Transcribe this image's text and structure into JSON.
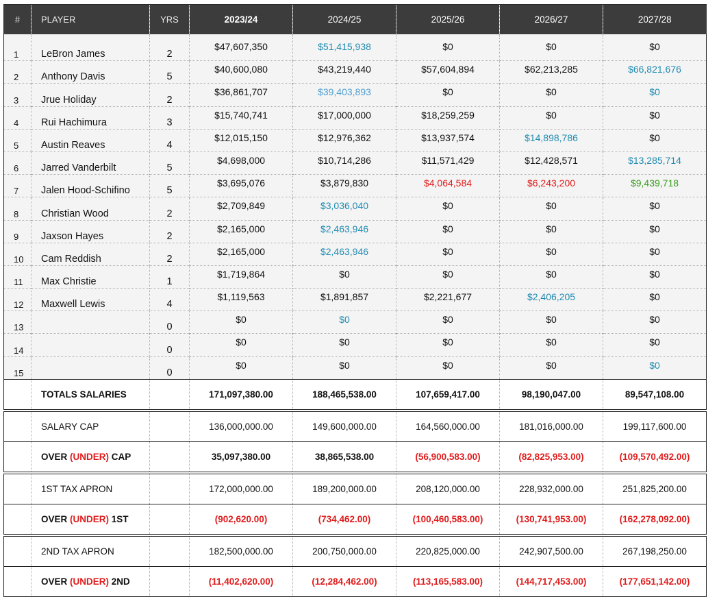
{
  "header": {
    "num": "#",
    "player": "PLAYER",
    "yrs": "YRS",
    "seasons": [
      "2023/24",
      "2024/25",
      "2025/26",
      "2026/27",
      "2027/28"
    ]
  },
  "players": [
    {
      "num": "1",
      "name": "LeBron James",
      "yrs": "2",
      "values": [
        {
          "text": "$47,607,350",
          "color": "black"
        },
        {
          "text": "$51,415,938",
          "color": "blue"
        },
        {
          "text": "$0",
          "color": "black"
        },
        {
          "text": "$0",
          "color": "black"
        },
        {
          "text": "$0",
          "color": "black"
        }
      ]
    },
    {
      "num": "2",
      "name": "Anthony Davis",
      "yrs": "5",
      "values": [
        {
          "text": "$40,600,080",
          "color": "black"
        },
        {
          "text": "$43,219,440",
          "color": "black"
        },
        {
          "text": "$57,604,894",
          "color": "black"
        },
        {
          "text": "$62,213,285",
          "color": "black"
        },
        {
          "text": "$66,821,676",
          "color": "blue"
        }
      ]
    },
    {
      "num": "3",
      "name": "Jrue Holiday",
      "yrs": "2",
      "values": [
        {
          "text": "$36,861,707",
          "color": "black"
        },
        {
          "text": "$39,403,893",
          "color": "lightblue"
        },
        {
          "text": "$0",
          "color": "black"
        },
        {
          "text": "$0",
          "color": "black"
        },
        {
          "text": "$0",
          "color": "blue"
        }
      ]
    },
    {
      "num": "4",
      "name": "Rui Hachimura",
      "yrs": "3",
      "values": [
        {
          "text": "$15,740,741",
          "color": "black"
        },
        {
          "text": "$17,000,000",
          "color": "black"
        },
        {
          "text": "$18,259,259",
          "color": "black"
        },
        {
          "text": "$0",
          "color": "black"
        },
        {
          "text": "$0",
          "color": "black"
        }
      ]
    },
    {
      "num": "5",
      "name": "Austin Reaves",
      "yrs": "4",
      "values": [
        {
          "text": "$12,015,150",
          "color": "black"
        },
        {
          "text": "$12,976,362",
          "color": "black"
        },
        {
          "text": "$13,937,574",
          "color": "black"
        },
        {
          "text": "$14,898,786",
          "color": "blue"
        },
        {
          "text": "$0",
          "color": "black"
        }
      ]
    },
    {
      "num": "6",
      "name": "Jarred Vanderbilt",
      "yrs": "5",
      "values": [
        {
          "text": "$4,698,000",
          "color": "black"
        },
        {
          "text": "$10,714,286",
          "color": "black"
        },
        {
          "text": "$11,571,429",
          "color": "black"
        },
        {
          "text": "$12,428,571",
          "color": "black"
        },
        {
          "text": "$13,285,714",
          "color": "blue"
        }
      ]
    },
    {
      "num": "7",
      "name": "Jalen Hood-Schifino",
      "yrs": "5",
      "values": [
        {
          "text": "$3,695,076",
          "color": "black"
        },
        {
          "text": "$3,879,830",
          "color": "black"
        },
        {
          "text": "$4,064,584",
          "color": "red"
        },
        {
          "text": "$6,243,200",
          "color": "red"
        },
        {
          "text": "$9,439,718",
          "color": "green"
        }
      ]
    },
    {
      "num": "8",
      "name": "Christian Wood",
      "yrs": "2",
      "values": [
        {
          "text": "$2,709,849",
          "color": "black"
        },
        {
          "text": "$3,036,040",
          "color": "blue"
        },
        {
          "text": "$0",
          "color": "black"
        },
        {
          "text": "$0",
          "color": "black"
        },
        {
          "text": "$0",
          "color": "black"
        }
      ]
    },
    {
      "num": "9",
      "name": "Jaxson Hayes",
      "yrs": "2",
      "values": [
        {
          "text": "$2,165,000",
          "color": "black"
        },
        {
          "text": "$2,463,946",
          "color": "blue"
        },
        {
          "text": "$0",
          "color": "black"
        },
        {
          "text": "$0",
          "color": "black"
        },
        {
          "text": "$0",
          "color": "black"
        }
      ]
    },
    {
      "num": "10",
      "name": "Cam Reddish",
      "yrs": "2",
      "values": [
        {
          "text": "$2,165,000",
          "color": "black"
        },
        {
          "text": "$2,463,946",
          "color": "blue"
        },
        {
          "text": "$0",
          "color": "black"
        },
        {
          "text": "$0",
          "color": "black"
        },
        {
          "text": "$0",
          "color": "black"
        }
      ]
    },
    {
      "num": "11",
      "name": "Max Christie",
      "yrs": "1",
      "values": [
        {
          "text": "$1,719,864",
          "color": "black"
        },
        {
          "text": "$0",
          "color": "black"
        },
        {
          "text": "$0",
          "color": "black"
        },
        {
          "text": "$0",
          "color": "black"
        },
        {
          "text": "$0",
          "color": "black"
        }
      ]
    },
    {
      "num": "12",
      "name": "Maxwell Lewis",
      "yrs": "4",
      "values": [
        {
          "text": "$1,119,563",
          "color": "black"
        },
        {
          "text": "$1,891,857",
          "color": "black"
        },
        {
          "text": "$2,221,677",
          "color": "black"
        },
        {
          "text": "$2,406,205",
          "color": "blue"
        },
        {
          "text": "$0",
          "color": "black"
        }
      ]
    },
    {
      "num": "13",
      "name": "",
      "yrs": "0",
      "values": [
        {
          "text": "$0",
          "color": "black"
        },
        {
          "text": "$0",
          "color": "blue"
        },
        {
          "text": "$0",
          "color": "black"
        },
        {
          "text": "$0",
          "color": "black"
        },
        {
          "text": "$0",
          "color": "black"
        }
      ]
    },
    {
      "num": "14",
      "name": "",
      "yrs": "0",
      "values": [
        {
          "text": "$0",
          "color": "black"
        },
        {
          "text": "$0",
          "color": "black"
        },
        {
          "text": "$0",
          "color": "black"
        },
        {
          "text": "$0",
          "color": "black"
        },
        {
          "text": "$0",
          "color": "black"
        }
      ]
    },
    {
      "num": "15",
      "name": "",
      "yrs": "0",
      "values": [
        {
          "text": "$0",
          "color": "black"
        },
        {
          "text": "$0",
          "color": "black"
        },
        {
          "text": "$0",
          "color": "black"
        },
        {
          "text": "$0",
          "color": "black"
        },
        {
          "text": "$0",
          "color": "blue"
        }
      ]
    }
  ],
  "summary": [
    {
      "id": "totals-salaries",
      "label": "TOTALS SALARIES",
      "bold": true,
      "values": [
        {
          "text": "171,097,380.00",
          "neg": false
        },
        {
          "text": "188,465,538.00",
          "neg": false
        },
        {
          "text": "107,659,417.00",
          "neg": false
        },
        {
          "text": "98,190,047.00",
          "neg": false
        },
        {
          "text": "89,547,108.00",
          "neg": false
        }
      ]
    },
    {
      "id": "salary-cap",
      "label": "SALARY CAP",
      "bold": false,
      "values": [
        {
          "text": "136,000,000.00",
          "neg": false
        },
        {
          "text": "149,600,000.00",
          "neg": false
        },
        {
          "text": "164,560,000.00",
          "neg": false
        },
        {
          "text": "181,016,000.00",
          "neg": false
        },
        {
          "text": "199,117,600.00",
          "neg": false
        }
      ]
    },
    {
      "id": "over-under-cap",
      "label_parts": [
        "OVER ",
        "(UNDER)",
        " CAP"
      ],
      "bold": true,
      "values": [
        {
          "text": "35,097,380.00",
          "neg": false
        },
        {
          "text": "38,865,538.00",
          "neg": false
        },
        {
          "text": "(56,900,583.00)",
          "neg": true
        },
        {
          "text": "(82,825,953.00)",
          "neg": true
        },
        {
          "text": "(109,570,492.00)",
          "neg": true
        }
      ]
    },
    {
      "id": "first-tax-apron",
      "label": "1ST TAX APRON",
      "bold": false,
      "values": [
        {
          "text": "172,000,000.00",
          "neg": false
        },
        {
          "text": "189,200,000.00",
          "neg": false
        },
        {
          "text": "208,120,000.00",
          "neg": false
        },
        {
          "text": "228,932,000.00",
          "neg": false
        },
        {
          "text": "251,825,200.00",
          "neg": false
        }
      ]
    },
    {
      "id": "over-under-1st",
      "label_parts": [
        "OVER ",
        "(UNDER)",
        " 1ST"
      ],
      "bold": true,
      "values": [
        {
          "text": "(902,620.00)",
          "neg": true
        },
        {
          "text": "(734,462.00)",
          "neg": true
        },
        {
          "text": "(100,460,583.00)",
          "neg": true
        },
        {
          "text": "(130,741,953.00)",
          "neg": true
        },
        {
          "text": "(162,278,092.00)",
          "neg": true
        }
      ]
    },
    {
      "id": "second-tax-apron",
      "label": "2ND TAX APRON",
      "bold": false,
      "values": [
        {
          "text": "182,500,000.00",
          "neg": false
        },
        {
          "text": "200,750,000.00",
          "neg": false
        },
        {
          "text": "220,825,000.00",
          "neg": false
        },
        {
          "text": "242,907,500.00",
          "neg": false
        },
        {
          "text": "267,198,250.00",
          "neg": false
        }
      ]
    },
    {
      "id": "over-under-2nd",
      "label_parts": [
        "OVER ",
        "(UNDER)",
        " 2ND"
      ],
      "bold": true,
      "values": [
        {
          "text": "(11,402,620.00)",
          "neg": true
        },
        {
          "text": "(12,284,462.00)",
          "neg": true
        },
        {
          "text": "(113,165,583.00)",
          "neg": true
        },
        {
          "text": "(144,717,453.00)",
          "neg": true
        },
        {
          "text": "(177,651,142.00)",
          "neg": true
        }
      ]
    }
  ]
}
